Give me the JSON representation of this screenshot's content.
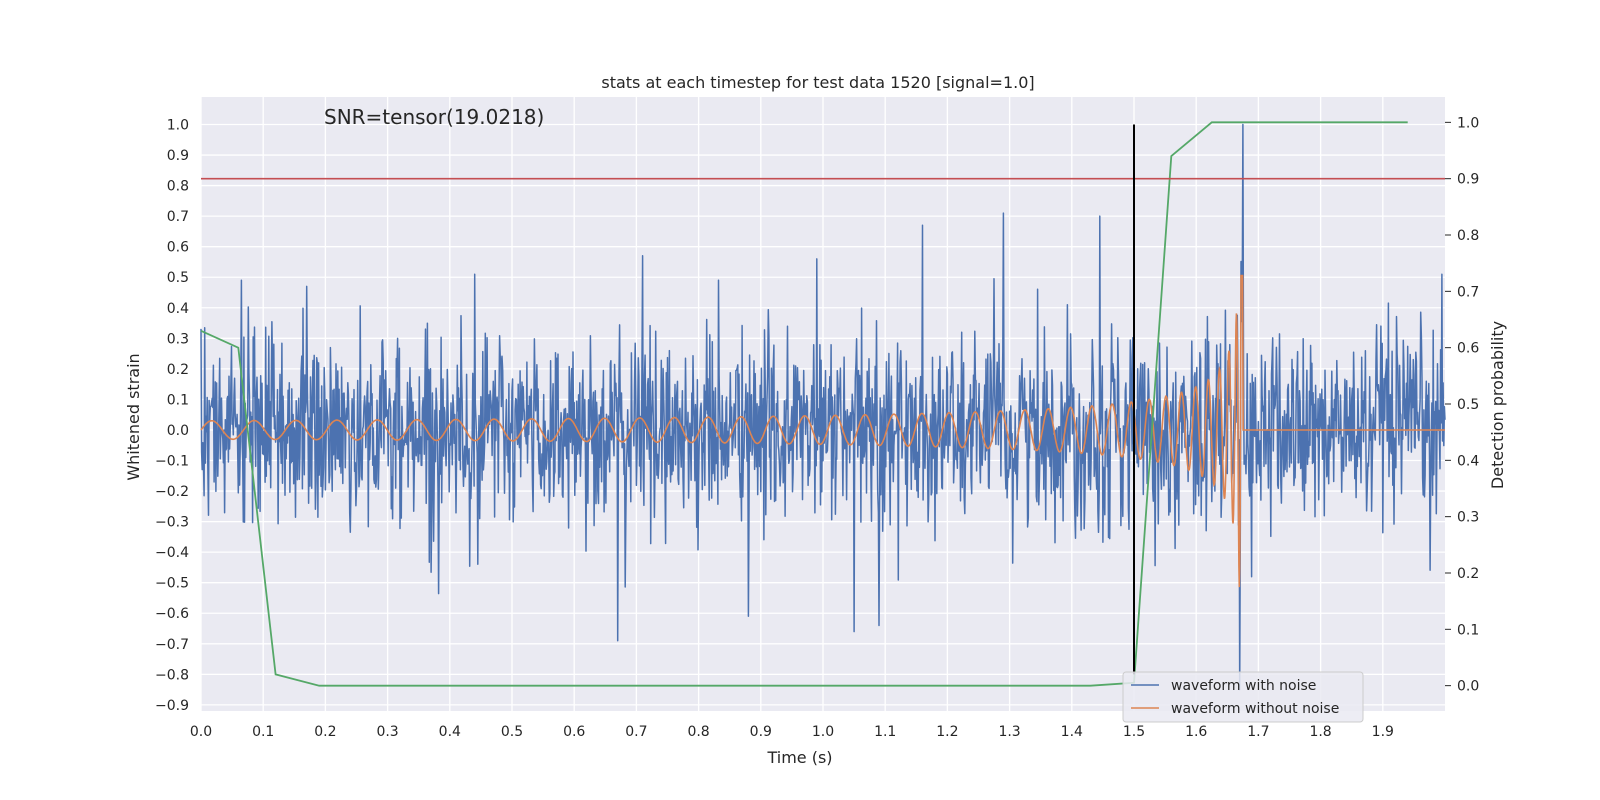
{
  "chart_data": {
    "type": "line",
    "title": "stats at each timestep for test data 1520 [signal=1.0]",
    "annotation": "SNR=tensor(19.0218)",
    "xlabel": "Time (s)",
    "ylabel": "Whitened strain",
    "y2label": "Detection probability",
    "xlim": [
      0.0,
      2.0
    ],
    "ylim": [
      -0.92,
      1.09
    ],
    "y2lim": [
      -0.045,
      1.045
    ],
    "xticks": [
      "0.0",
      "0.1",
      "0.2",
      "0.3",
      "0.4",
      "0.5",
      "0.6",
      "0.7",
      "0.8",
      "0.9",
      "1.0",
      "1.1",
      "1.2",
      "1.3",
      "1.4",
      "1.5",
      "1.6",
      "1.7",
      "1.8",
      "1.9"
    ],
    "yticks": [
      "1.0",
      "0.9",
      "0.8",
      "0.7",
      "0.6",
      "0.5",
      "0.4",
      "0.3",
      "0.2",
      "0.1",
      "0.0",
      "−0.1",
      "−0.2",
      "−0.3",
      "−0.4",
      "−0.5",
      "−0.6",
      "−0.7",
      "−0.8",
      "−0.9"
    ],
    "y2ticks": [
      "1.0",
      "0.9",
      "0.8",
      "0.7",
      "0.6",
      "0.5",
      "0.4",
      "0.3",
      "0.2",
      "0.1",
      "0.0"
    ],
    "grid": true,
    "legend_position": "lower-right",
    "series": [
      {
        "name": "waveform with noise",
        "color": "#4c72b0",
        "axis": "left",
        "kind": "noise",
        "x_range": [
          0.0,
          2.0
        ],
        "typical_amplitude": 0.18,
        "peaks": [
          {
            "x": 0.065,
            "y": 0.49
          },
          {
            "x": 0.17,
            "y": 0.47
          },
          {
            "x": 0.44,
            "y": 0.51
          },
          {
            "x": 0.67,
            "y": -0.69
          },
          {
            "x": 0.71,
            "y": 0.57
          },
          {
            "x": 0.88,
            "y": -0.61
          },
          {
            "x": 0.99,
            "y": 0.56
          },
          {
            "x": 1.05,
            "y": -0.66
          },
          {
            "x": 1.09,
            "y": -0.64
          },
          {
            "x": 1.16,
            "y": 0.67
          },
          {
            "x": 1.29,
            "y": 0.71
          },
          {
            "x": 1.445,
            "y": 0.7
          },
          {
            "x": 1.675,
            "y": 1.0
          },
          {
            "x": 1.67,
            "y": -0.85
          },
          {
            "x": 1.995,
            "y": 0.51
          }
        ]
      },
      {
        "name": "waveform without noise",
        "color": "#dd8452",
        "axis": "left",
        "kind": "chirp",
        "merger_time": 1.675,
        "start_amplitude": 0.03,
        "peak_amplitude": 0.73,
        "post_merger_value": 0.0
      },
      {
        "name": "",
        "color": "#55a868",
        "axis": "right",
        "kind": "probability",
        "x": [
          0.0,
          0.06,
          0.12,
          0.19,
          0.5,
          1.0,
          1.43,
          1.5,
          1.56,
          1.625,
          1.7,
          1.94
        ],
        "y": [
          0.63,
          0.6,
          0.02,
          0.0,
          0.0,
          0.0,
          0.0,
          0.005,
          0.94,
          1.0,
          1.0,
          1.0
        ]
      }
    ],
    "hlines": [
      {
        "axis": "right",
        "y": 0.9,
        "color": "#c44e52"
      }
    ],
    "vlines": [
      {
        "x": 1.5,
        "y_from": -0.8,
        "y_to": 1.0,
        "color": "#000000"
      }
    ],
    "legend": [
      {
        "label": "waveform with noise",
        "color": "#4c72b0"
      },
      {
        "label": "waveform without noise",
        "color": "#dd8452"
      }
    ]
  }
}
